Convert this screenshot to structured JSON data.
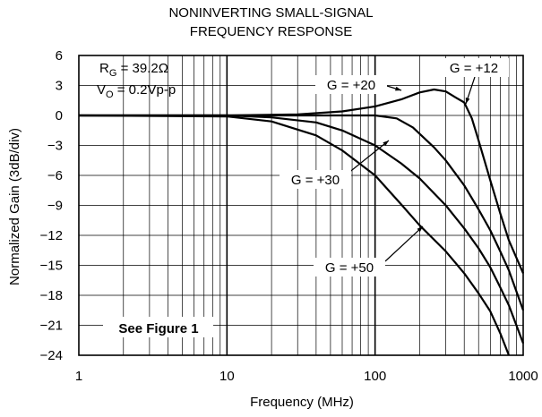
{
  "chart_data": {
    "type": "line",
    "title_line1": "NONINVERTING SMALL-SIGNAL",
    "title_line2": "FREQUENCY RESPONSE",
    "xlabel": "Frequency (MHz)",
    "ylabel": "Normalized Gain (3dB/div)",
    "xscale": "log",
    "xlim": [
      1,
      1000
    ],
    "ylim": [
      -24,
      6
    ],
    "x_ticks": [
      "1",
      "10",
      "100",
      "1000"
    ],
    "y_ticks": [
      "6",
      "3",
      "0",
      "−3",
      "−6",
      "−9",
      "−12",
      "−15",
      "−18",
      "−21",
      "−24"
    ],
    "grid": true,
    "series": [
      {
        "name": "G = +12",
        "x": [
          1,
          10,
          30,
          60,
          100,
          150,
          200,
          250,
          300,
          350,
          400,
          450,
          500,
          600,
          700,
          800,
          1000
        ],
        "y": [
          0,
          0,
          0.1,
          0.4,
          0.9,
          1.6,
          2.3,
          2.6,
          2.4,
          1.8,
          1.3,
          -0.3,
          -2.5,
          -6.5,
          -9.8,
          -12.5,
          -15.8
        ]
      },
      {
        "name": "G = +20",
        "x": [
          1,
          10,
          30,
          60,
          100,
          140,
          180,
          250,
          300,
          400,
          500,
          600,
          700,
          800,
          1000
        ],
        "y": [
          0,
          0,
          0,
          0,
          0,
          -0.3,
          -1.2,
          -3.2,
          -4.5,
          -7.0,
          -9.4,
          -11.5,
          -13.6,
          -15.5,
          -19.5
        ]
      },
      {
        "name": "G = +30",
        "x": [
          1,
          10,
          20,
          40,
          60,
          100,
          150,
          200,
          300,
          400,
          500,
          600,
          700,
          800,
          1000
        ],
        "y": [
          0,
          0,
          -0.2,
          -0.7,
          -1.5,
          -3.0,
          -4.8,
          -6.3,
          -9.0,
          -11.3,
          -13.3,
          -15.2,
          -17.2,
          -19.0,
          -22.8
        ]
      },
      {
        "name": "G = +50",
        "x": [
          1,
          10,
          20,
          40,
          60,
          100,
          150,
          200,
          300,
          400,
          500,
          600,
          700,
          800
        ],
        "y": [
          0,
          -0.1,
          -0.6,
          -2.0,
          -3.5,
          -6.0,
          -8.9,
          -11.0,
          -13.6,
          -15.8,
          -17.8,
          -19.6,
          -21.8,
          -24.0
        ]
      }
    ],
    "annotations": {
      "rg_main": "R",
      "rg_sub": "G",
      "rg_rest": " = 39.2Ω",
      "vo_main": "V",
      "vo_sub": "O",
      "vo_rest": " = 0.2Vp-p",
      "see_figure": "See Figure 1",
      "g12": "G = +12",
      "g20": "G = +20",
      "g30": "G = +30",
      "g50": "G = +50"
    }
  }
}
